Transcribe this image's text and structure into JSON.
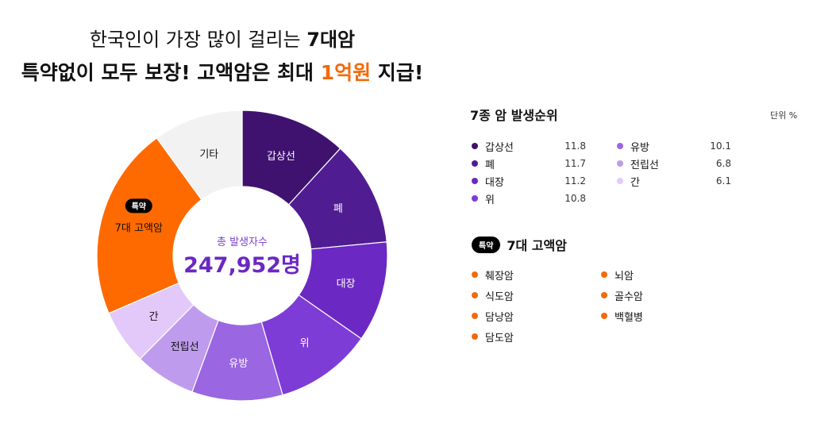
{
  "headline": {
    "line1_prefix": "한국인이 가장 많이 걸리는 ",
    "line1_bold": "7대암",
    "line2_prefix": "특약없이 모두 보장! 고액암은 최대 ",
    "line2_highlight": "1억원",
    "line2_suffix": " 지급!"
  },
  "center": {
    "label": "총 발생자수",
    "value": "247,952명"
  },
  "rank_panel": {
    "title": "7종 암 발생순위",
    "unit": "단위 %",
    "col1": [
      {
        "name": "갑상선",
        "value": "11.8",
        "color": "#3f1270"
      },
      {
        "name": "폐",
        "value": "11.7",
        "color": "#4f1d91"
      },
      {
        "name": "대장",
        "value": "11.2",
        "color": "#6b28c2"
      },
      {
        "name": "위",
        "value": "10.8",
        "color": "#7d3cd6"
      }
    ],
    "col2": [
      {
        "name": "유방",
        "value": "10.1",
        "color": "#9a66e2"
      },
      {
        "name": "전립선",
        "value": "6.8",
        "color": "#bf9bee"
      },
      {
        "name": "간",
        "value": "6.1",
        "color": "#e3c9f9"
      }
    ]
  },
  "high_cost_panel": {
    "badge": "특약",
    "title": "7대 고액암",
    "color": "#f26a0a",
    "col1": [
      "췌장암",
      "식도암",
      "담낭암",
      "담도암"
    ],
    "col2": [
      "뇌암",
      "골수암",
      "백혈병"
    ]
  },
  "chart_data": {
    "type": "pie",
    "title": "한국인이 가장 많이 걸리는 7대암",
    "center_label": "총 발생자수",
    "center_value": "247,952명",
    "unit": "%",
    "slices": [
      {
        "label": "갑상선",
        "value": 11.8,
        "color": "#3f1270",
        "text_color": "#ffffff"
      },
      {
        "label": "폐",
        "value": 11.7,
        "color": "#4f1d91",
        "text_color": "#ffffff"
      },
      {
        "label": "대장",
        "value": 11.2,
        "color": "#6b28c2",
        "text_color": "#ffffff"
      },
      {
        "label": "위",
        "value": 10.8,
        "color": "#7d3cd6",
        "text_color": "#ffffff"
      },
      {
        "label": "유방",
        "value": 10.1,
        "color": "#9a66e2",
        "text_color": "#ffffff"
      },
      {
        "label": "전립선",
        "value": 6.8,
        "color": "#bf9bee",
        "text_color": "#111111"
      },
      {
        "label": "간",
        "value": 6.1,
        "color": "#e3c9f9",
        "text_color": "#111111"
      },
      {
        "label": "7대 고액암",
        "value": 21.5,
        "color": "#ff6a00",
        "text_color": "#111111",
        "badge": "특약"
      },
      {
        "label": "기타",
        "value": 10.0,
        "color": "#f2f2f2",
        "text_color": "#111111"
      }
    ]
  }
}
